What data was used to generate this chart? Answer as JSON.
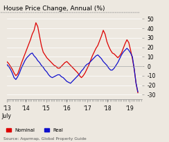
{
  "title": "House Price Change, Annual (%)",
  "source": "Source: Aqarmap, Global Property Guide",
  "legend_nominal": "Nominal",
  "legend_real": "Real",
  "nominal_color": "#dd0000",
  "real_color": "#1010cc",
  "ylim": [
    -35,
    52
  ],
  "yticks": [
    -30,
    -20,
    -10,
    0,
    10,
    20,
    30,
    40,
    50
  ],
  "xtick_labels": [
    "'13\nJuly",
    "'14",
    "'15",
    "'16",
    "'17",
    "'18",
    "'19"
  ],
  "background_color": "#ede8e0",
  "nominal_y": [
    5,
    3,
    0,
    -3,
    -7,
    -10,
    -8,
    -3,
    3,
    8,
    13,
    18,
    23,
    28,
    34,
    38,
    46,
    42,
    32,
    22,
    15,
    12,
    9,
    7,
    5,
    3,
    1,
    0,
    -2,
    -2,
    0,
    2,
    4,
    5,
    3,
    1,
    -1,
    -3,
    -5,
    -7,
    -10,
    -12,
    -10,
    -7,
    -3,
    1,
    6,
    11,
    15,
    19,
    22,
    27,
    32,
    38,
    34,
    26,
    21,
    17,
    14,
    13,
    11,
    9,
    11,
    14,
    19,
    24,
    28,
    25,
    17,
    8,
    -3,
    -18,
    -28
  ],
  "real_y": [
    2,
    0,
    -3,
    -7,
    -12,
    -14,
    -11,
    -7,
    -2,
    2,
    6,
    9,
    11,
    13,
    14,
    11,
    9,
    6,
    4,
    1,
    -1,
    -4,
    -6,
    -9,
    -11,
    -12,
    -11,
    -10,
    -9,
    -9,
    -11,
    -12,
    -14,
    -16,
    -17,
    -18,
    -16,
    -14,
    -12,
    -10,
    -8,
    -5,
    -3,
    0,
    2,
    3,
    5,
    7,
    9,
    11,
    12,
    10,
    8,
    5,
    3,
    1,
    -2,
    -4,
    -4,
    -2,
    1,
    4,
    8,
    12,
    15,
    17,
    19,
    17,
    14,
    10,
    -3,
    -18,
    -27
  ]
}
